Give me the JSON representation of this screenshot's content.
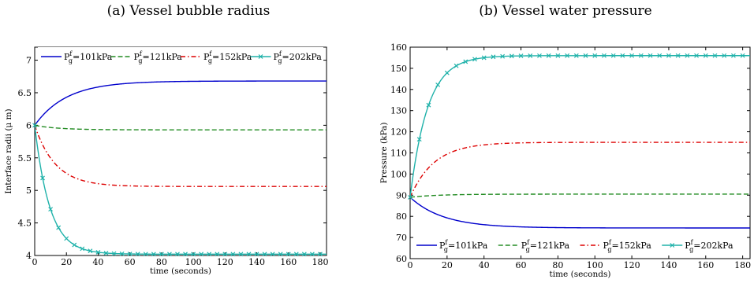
{
  "chart_data": [
    {
      "type": "line",
      "caption": "(a) Vessel bubble radius",
      "xlabel": "time (seconds)",
      "ylabel": "Interface radii (μ m)",
      "xlim": [
        0,
        184
      ],
      "ylim": [
        4,
        7.2
      ],
      "xticks": [
        0,
        20,
        40,
        60,
        80,
        100,
        120,
        140,
        160,
        180
      ],
      "yticks": [
        4,
        4.5,
        5,
        5.5,
        6,
        6.5,
        7
      ],
      "ytick_labels": [
        "4",
        "4.5",
        "5",
        "5.5",
        "6",
        "6.5",
        "7"
      ],
      "legend_position": "top",
      "series": [
        {
          "name": "P_g^f=101kPa",
          "label_base": "P",
          "label_sup": "f",
          "label_sub": "g",
          "label_rest": "=101kPa",
          "color": "#0000cc",
          "dash": "solid",
          "marker": "none",
          "start": 6.0,
          "end": 6.68,
          "tau": 20
        },
        {
          "name": "P_g^f=121kPa",
          "label_base": "P",
          "label_sup": "f",
          "label_sub": "g",
          "label_rest": "=121kPa",
          "color": "#228b22",
          "dash": "dashed",
          "marker": "none",
          "start": 6.0,
          "end": 5.93,
          "tau": 15
        },
        {
          "name": "P_g^f=152kPa",
          "label_base": "P",
          "label_sup": "f",
          "label_sub": "g",
          "label_rest": "=152kPa",
          "color": "#dd0000",
          "dash": "dashdot",
          "marker": "none",
          "start": 6.0,
          "end": 5.06,
          "tau": 13
        },
        {
          "name": "P_g^f=202kPa",
          "label_base": "P",
          "label_sup": "f",
          "label_sub": "g",
          "label_rest": "=202kPa",
          "color": "#20b2aa",
          "dash": "solid",
          "marker": "x",
          "start": 6.0,
          "end": 4.02,
          "tau": 9.5
        }
      ]
    },
    {
      "type": "line",
      "caption": "(b) Vessel water pressure",
      "xlabel": "time (seconds)",
      "ylabel": "Pressure (kPa)",
      "xlim": [
        0,
        184
      ],
      "ylim": [
        60,
        160
      ],
      "xticks": [
        0,
        20,
        40,
        60,
        80,
        100,
        120,
        140,
        160,
        180
      ],
      "yticks": [
        60,
        70,
        80,
        90,
        100,
        110,
        120,
        130,
        140,
        150,
        160
      ],
      "ytick_labels": [
        "60",
        "70",
        "80",
        "90",
        "100",
        "110",
        "120",
        "130",
        "140",
        "150",
        "160"
      ],
      "legend_position": "bottom",
      "series": [
        {
          "name": "P_g^f=101kPa",
          "label_base": "P",
          "label_sup": "f",
          "label_sub": "g",
          "label_rest": "=101kPa",
          "color": "#0000cc",
          "dash": "solid",
          "marker": "none",
          "start": 89,
          "end": 74.5,
          "tau": 18
        },
        {
          "name": "P_g^f=121kPa",
          "label_base": "P",
          "label_sup": "f",
          "label_sub": "g",
          "label_rest": "=121kPa",
          "color": "#228b22",
          "dash": "dashed",
          "marker": "none",
          "start": 89,
          "end": 90.5,
          "tau": 15
        },
        {
          "name": "P_g^f=152kPa",
          "label_base": "P",
          "label_sup": "f",
          "label_sub": "g",
          "label_rest": "=152kPa",
          "color": "#dd0000",
          "dash": "dashdot",
          "marker": "none",
          "start": 89,
          "end": 115,
          "tau": 13
        },
        {
          "name": "P_g^f=202kPa",
          "label_base": "P",
          "label_sup": "f",
          "label_sub": "g",
          "label_rest": "=202kPa",
          "color": "#20b2aa",
          "dash": "solid",
          "marker": "x",
          "start": 89,
          "end": 156,
          "tau": 9.5
        }
      ]
    }
  ]
}
